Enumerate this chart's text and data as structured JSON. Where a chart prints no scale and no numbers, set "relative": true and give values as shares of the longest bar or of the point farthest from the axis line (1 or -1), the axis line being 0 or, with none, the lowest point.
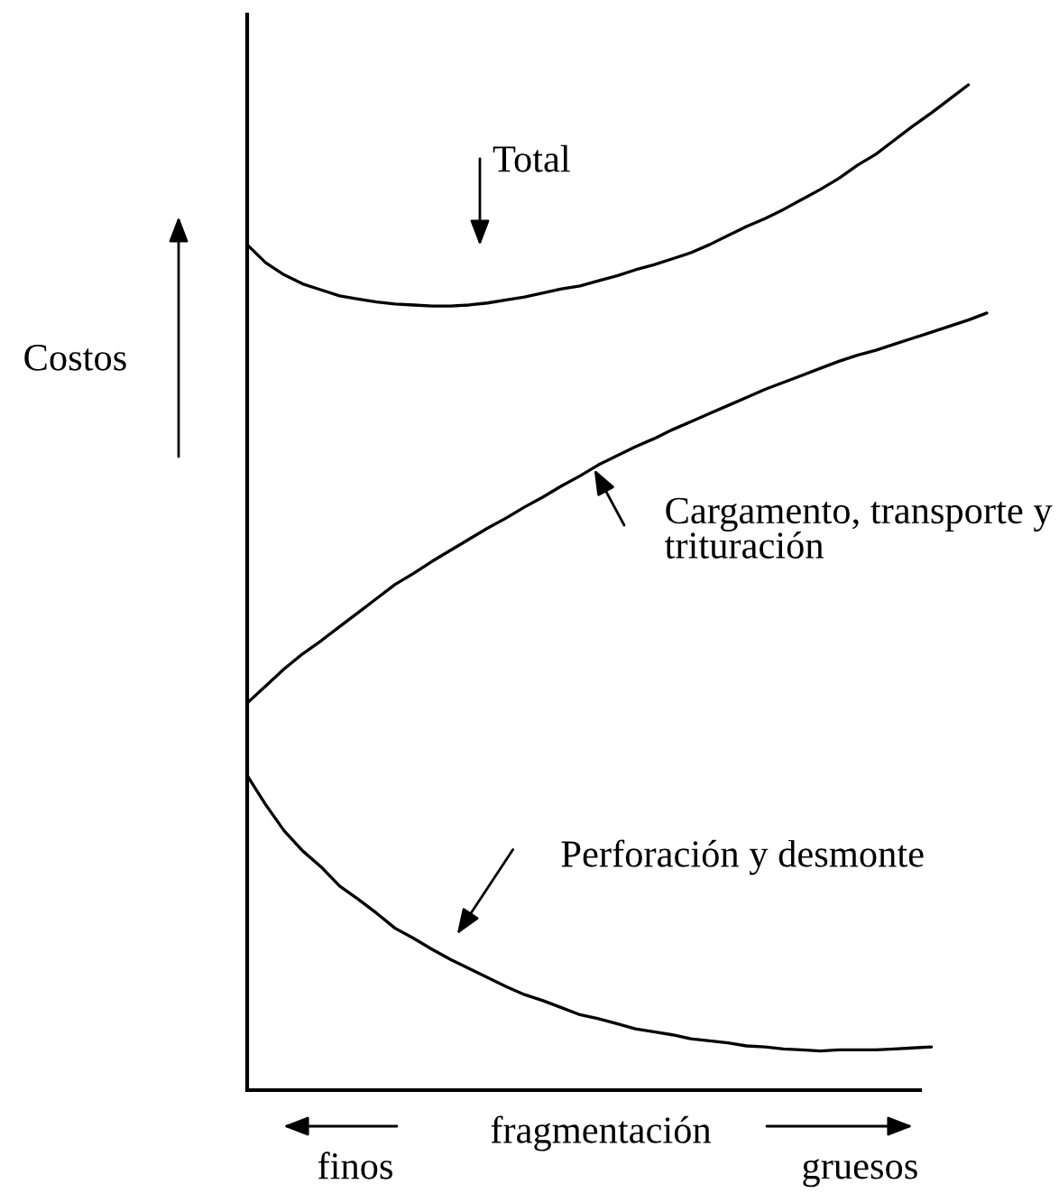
{
  "chart_data": {
    "type": "line",
    "relative": true,
    "xlabel": "fragmentación",
    "ylabel": "Costos",
    "annotations": [
      "Total",
      "Cargamento, transporte y\ntrituración",
      "Perforación y desmonte",
      "finos",
      "gruesos"
    ],
    "categories": [
      null,
      null,
      null,
      null,
      null,
      null,
      null,
      null,
      null,
      null,
      null,
      null,
      null,
      null,
      null,
      null,
      null,
      null,
      null,
      null,
      null,
      null,
      null,
      null,
      null,
      null,
      null,
      null,
      null,
      null,
      null,
      null,
      null,
      null,
      null,
      null,
      null,
      null,
      null,
      null,
      null
    ],
    "series": [
      {
        "color": "#000000",
        "values": [
          0.841,
          0.823,
          0.811,
          0.802,
          0.796,
          0.79,
          0.787,
          0.784,
          0.782,
          0.781,
          0.78,
          0.78,
          0.781,
          0.783,
          0.786,
          0.789,
          0.793,
          0.797,
          0.8,
          0.805,
          0.81,
          0.816,
          0.821,
          0.827,
          0.833,
          0.841,
          0.85,
          0.859,
          0.867,
          0.876,
          0.886,
          0.896,
          0.907,
          0.92,
          0.931,
          0.945,
          0.959,
          0.972,
          0.986,
          1,
          null
        ]
      },
      {
        "color": "#000000",
        "values": [
          0.385,
          0.402,
          0.419,
          0.434,
          0.447,
          0.461,
          0.475,
          0.489,
          0.503,
          0.514,
          0.526,
          0.537,
          0.548,
          0.559,
          0.569,
          0.58,
          0.59,
          0.601,
          0.611,
          0.622,
          0.631,
          0.64,
          0.648,
          0.657,
          0.665,
          0.673,
          0.681,
          0.689,
          0.697,
          0.704,
          0.711,
          0.718,
          0.725,
          0.731,
          0.736,
          0.742,
          0.748,
          0.754,
          0.76,
          0.766,
          0.773
        ]
      },
      {
        "color": "#000000",
        "values": [
          0.313,
          0.284,
          0.258,
          0.238,
          0.222,
          0.203,
          0.19,
          0.176,
          0.161,
          0.151,
          0.14,
          0.13,
          0.121,
          0.112,
          0.103,
          0.095,
          0.089,
          0.082,
          0.075,
          0.071,
          0.066,
          0.061,
          0.058,
          0.055,
          0.051,
          0.049,
          0.047,
          0.044,
          0.043,
          0.041,
          0.04,
          0.039,
          0.04,
          0.04,
          0.04,
          0.041,
          0.042,
          0.043,
          null,
          null,
          null
        ]
      }
    ]
  }
}
